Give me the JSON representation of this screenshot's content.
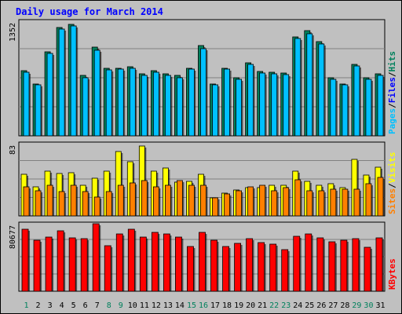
{
  "title": "Daily usage for March 2014",
  "colors": {
    "background": "#c0c0c0",
    "panel": "#c0c0c0",
    "hits": "#00805c",
    "files": "#0000ff",
    "pages": "#00c0ff",
    "visits": "#ffff00",
    "sites": "#ff8000",
    "kbytes": "#ff0000",
    "weekday_label": "#000000",
    "weekend_label": "#00805c"
  },
  "chart_data": [
    {
      "type": "bar",
      "panel": "hits-files-pages",
      "ymax_label": "1352",
      "ylim": [
        0,
        1352
      ],
      "legend": [
        {
          "name": "Pages",
          "color": "#00c0ff"
        },
        {
          "name": "Files",
          "color": "#0000ff"
        },
        {
          "name": "Hits",
          "color": "#00805c"
        }
      ],
      "series": [
        {
          "name": "Hits",
          "values": [
            760,
            600,
            980,
            1260,
            1300,
            700,
            1030,
            790,
            790,
            800,
            720,
            760,
            720,
            700,
            790,
            1050,
            600,
            790,
            680,
            850,
            750,
            740,
            730,
            1150,
            1220,
            1100,
            680,
            600,
            830,
            680,
            720
          ]
        },
        {
          "name": "Pages",
          "values": [
            740,
            590,
            960,
            1240,
            1280,
            680,
            1000,
            770,
            780,
            790,
            700,
            740,
            700,
            680,
            780,
            1010,
            590,
            780,
            660,
            830,
            730,
            720,
            710,
            1130,
            1190,
            1070,
            660,
            590,
            810,
            660,
            700
          ]
        }
      ],
      "categories": [
        "1",
        "2",
        "3",
        "4",
        "5",
        "6",
        "7",
        "8",
        "9",
        "10",
        "11",
        "12",
        "13",
        "14",
        "15",
        "16",
        "17",
        "18",
        "19",
        "20",
        "21",
        "22",
        "23",
        "24",
        "25",
        "26",
        "27",
        "28",
        "29",
        "30",
        "31"
      ]
    },
    {
      "type": "bar",
      "panel": "visits-sites",
      "ymax_label": "83",
      "ylim": [
        0,
        83
      ],
      "legend": [
        {
          "name": "Sites",
          "color": "#ff8000"
        },
        {
          "name": "Visits",
          "color": "#ffff00"
        }
      ],
      "series": [
        {
          "name": "Visits",
          "values": [
            47,
            33,
            50,
            48,
            49,
            34,
            42,
            50,
            72,
            61,
            79,
            50,
            54,
            38,
            39,
            47,
            20,
            26,
            29,
            32,
            32,
            34,
            34,
            50,
            39,
            34,
            36,
            32,
            64,
            46,
            55
          ]
        },
        {
          "name": "Sites",
          "values": [
            33,
            28,
            34,
            27,
            34,
            27,
            21,
            27,
            34,
            37,
            40,
            33,
            34,
            40,
            34,
            34,
            20,
            25,
            28,
            33,
            34,
            28,
            32,
            41,
            28,
            28,
            30,
            30,
            30,
            36,
            43
          ]
        }
      ],
      "categories": [
        "1",
        "2",
        "3",
        "4",
        "5",
        "6",
        "7",
        "8",
        "9",
        "10",
        "11",
        "12",
        "13",
        "14",
        "15",
        "16",
        "17",
        "18",
        "19",
        "20",
        "21",
        "22",
        "23",
        "24",
        "25",
        "26",
        "27",
        "28",
        "29",
        "30",
        "31"
      ]
    },
    {
      "type": "bar",
      "panel": "kbytes",
      "ymax_label": "80677",
      "ylim": [
        0,
        80677
      ],
      "legend": [
        {
          "name": "KBytes",
          "color": "#ff0000"
        }
      ],
      "series": [
        {
          "name": "KBytes",
          "values": [
            72000,
            60000,
            63000,
            71000,
            62000,
            61000,
            79000,
            53000,
            67000,
            72000,
            63000,
            69000,
            67000,
            63000,
            52000,
            69000,
            60000,
            52000,
            56000,
            61000,
            57000,
            55000,
            49000,
            64000,
            67000,
            62000,
            58000,
            60000,
            61000,
            51000,
            62000
          ]
        }
      ],
      "categories": [
        "1",
        "2",
        "3",
        "4",
        "5",
        "6",
        "7",
        "8",
        "9",
        "10",
        "11",
        "12",
        "13",
        "14",
        "15",
        "16",
        "17",
        "18",
        "19",
        "20",
        "21",
        "22",
        "23",
        "24",
        "25",
        "26",
        "27",
        "28",
        "29",
        "30",
        "31"
      ]
    }
  ],
  "weekend_days": [
    1,
    8,
    9,
    15,
    16,
    22,
    23,
    29,
    30
  ]
}
